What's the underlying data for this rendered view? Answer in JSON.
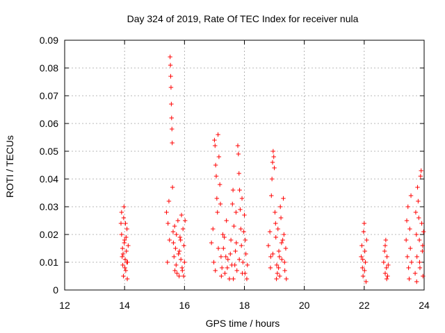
{
  "chart_data": {
    "type": "scatter",
    "title": "Day 324 of 2019, Rate Of TEC Index for receiver nula",
    "xlabel": "GPS time / hours",
    "ylabel": "ROTI / TECUs",
    "xlim": [
      12,
      24
    ],
    "ylim": [
      0,
      0.09
    ],
    "xticks": [
      12,
      14,
      16,
      18,
      20,
      22,
      24
    ],
    "xtick_labels": [
      "12",
      "14",
      "16",
      "18",
      "20",
      "22",
      "24"
    ],
    "yticks": [
      0,
      0.01,
      0.02,
      0.03,
      0.04,
      0.05,
      0.06,
      0.07,
      0.08,
      0.09
    ],
    "ytick_labels": [
      "0",
      "0.01",
      "0.02",
      "0.03",
      "0.04",
      "0.05",
      "0.06",
      "0.07",
      "0.08",
      "0.09"
    ],
    "grid": true,
    "marker": "+",
    "color": "#ff0000",
    "series": [
      {
        "name": "ROTI",
        "points": [
          [
            13.88,
            0.024
          ],
          [
            13.9,
            0.028
          ],
          [
            13.92,
            0.012
          ],
          [
            13.94,
            0.009
          ],
          [
            13.96,
            0.005
          ],
          [
            13.98,
            0.03
          ],
          [
            14.0,
            0.018
          ],
          [
            14.02,
            0.011
          ],
          [
            14.04,
            0.007
          ],
          [
            14.06,
            0.014
          ],
          [
            14.08,
            0.022
          ],
          [
            14.1,
            0.01
          ],
          [
            14.12,
            0.016
          ],
          [
            13.9,
            0.02
          ],
          [
            13.93,
            0.015
          ],
          [
            13.97,
            0.026
          ],
          [
            14.01,
            0.008
          ],
          [
            14.05,
            0.019
          ],
          [
            14.09,
            0.004
          ],
          [
            13.95,
            0.013
          ],
          [
            14.03,
            0.024
          ],
          [
            14.07,
            0.01
          ],
          [
            13.99,
            0.017
          ],
          [
            15.4,
            0.028
          ],
          [
            15.45,
            0.024
          ],
          [
            15.5,
            0.018
          ],
          [
            15.52,
            0.084
          ],
          [
            15.53,
            0.081
          ],
          [
            15.54,
            0.077
          ],
          [
            15.55,
            0.073
          ],
          [
            15.56,
            0.067
          ],
          [
            15.57,
            0.062
          ],
          [
            15.58,
            0.058
          ],
          [
            15.59,
            0.053
          ],
          [
            15.6,
            0.037
          ],
          [
            15.62,
            0.021
          ],
          [
            15.65,
            0.012
          ],
          [
            15.68,
            0.007
          ],
          [
            15.7,
            0.015
          ],
          [
            15.72,
            0.009
          ],
          [
            15.75,
            0.006
          ],
          [
            15.78,
            0.025
          ],
          [
            15.8,
            0.013
          ],
          [
            15.82,
            0.005
          ],
          [
            15.85,
            0.019
          ],
          [
            15.88,
            0.011
          ],
          [
            15.9,
            0.027
          ],
          [
            15.92,
            0.008
          ],
          [
            15.95,
            0.022
          ],
          [
            15.98,
            0.016
          ],
          [
            16.0,
            0.01
          ],
          [
            16.02,
            0.025
          ],
          [
            15.48,
            0.032
          ],
          [
            15.63,
            0.017
          ],
          [
            15.73,
            0.02
          ],
          [
            15.83,
            0.014
          ],
          [
            15.93,
            0.007
          ],
          [
            15.43,
            0.01
          ],
          [
            15.67,
            0.023
          ],
          [
            15.87,
            0.018
          ],
          [
            15.97,
            0.005
          ],
          [
            16.9,
            0.017
          ],
          [
            16.95,
            0.022
          ],
          [
            17.0,
            0.054
          ],
          [
            17.02,
            0.052
          ],
          [
            17.04,
            0.045
          ],
          [
            17.06,
            0.041
          ],
          [
            17.08,
            0.033
          ],
          [
            17.1,
            0.028
          ],
          [
            17.12,
            0.056
          ],
          [
            17.15,
            0.048
          ],
          [
            17.18,
            0.038
          ],
          [
            17.2,
            0.031
          ],
          [
            17.22,
            0.012
          ],
          [
            17.25,
            0.008
          ],
          [
            17.28,
            0.02
          ],
          [
            17.3,
            0.015
          ],
          [
            17.35,
            0.006
          ],
          [
            17.4,
            0.025
          ],
          [
            17.45,
            0.011
          ],
          [
            17.5,
            0.004
          ],
          [
            17.55,
            0.018
          ],
          [
            17.6,
            0.031
          ],
          [
            17.62,
            0.036
          ],
          [
            17.65,
            0.023
          ],
          [
            17.68,
            0.009
          ],
          [
            17.7,
            0.014
          ],
          [
            17.72,
            0.028
          ],
          [
            17.75,
            0.007
          ],
          [
            17.78,
            0.052
          ],
          [
            17.8,
            0.049
          ],
          [
            17.82,
            0.042
          ],
          [
            17.84,
            0.036
          ],
          [
            17.86,
            0.029
          ],
          [
            17.88,
            0.022
          ],
          [
            17.9,
            0.016
          ],
          [
            17.92,
            0.033
          ],
          [
            17.95,
            0.01
          ],
          [
            17.98,
            0.021
          ],
          [
            18.0,
            0.027
          ],
          [
            18.02,
            0.006
          ],
          [
            18.05,
            0.013
          ],
          [
            18.08,
            0.004
          ],
          [
            18.1,
            0.009
          ],
          [
            16.98,
            0.01
          ],
          [
            17.03,
            0.007
          ],
          [
            17.13,
            0.015
          ],
          [
            17.23,
            0.005
          ],
          [
            17.33,
            0.019
          ],
          [
            17.43,
            0.008
          ],
          [
            17.53,
            0.013
          ],
          [
            17.63,
            0.004
          ],
          [
            17.73,
            0.017
          ],
          [
            17.83,
            0.011
          ],
          [
            17.93,
            0.006
          ],
          [
            18.03,
            0.018
          ],
          [
            17.38,
            0.012
          ],
          [
            17.58,
            0.009
          ],
          [
            18.8,
            0.016
          ],
          [
            18.85,
            0.021
          ],
          [
            18.88,
            0.012
          ],
          [
            18.9,
            0.034
          ],
          [
            18.92,
            0.04
          ],
          [
            18.94,
            0.046
          ],
          [
            18.96,
            0.05
          ],
          [
            18.98,
            0.048
          ],
          [
            19.0,
            0.044
          ],
          [
            19.02,
            0.028
          ],
          [
            19.05,
            0.019
          ],
          [
            19.08,
            0.009
          ],
          [
            19.1,
            0.006
          ],
          [
            19.12,
            0.022
          ],
          [
            19.15,
            0.014
          ],
          [
            19.18,
            0.005
          ],
          [
            19.2,
            0.03
          ],
          [
            19.22,
            0.026
          ],
          [
            19.25,
            0.011
          ],
          [
            19.28,
            0.018
          ],
          [
            19.3,
            0.033
          ],
          [
            19.32,
            0.02
          ],
          [
            19.35,
            0.007
          ],
          [
            19.38,
            0.015
          ],
          [
            19.4,
            0.004
          ],
          [
            18.87,
            0.008
          ],
          [
            18.95,
            0.013
          ],
          [
            19.04,
            0.024
          ],
          [
            19.14,
            0.008
          ],
          [
            19.24,
            0.017
          ],
          [
            19.34,
            0.01
          ],
          [
            19.07,
            0.004
          ],
          [
            19.17,
            0.012
          ],
          [
            21.9,
            0.012
          ],
          [
            21.92,
            0.016
          ],
          [
            21.94,
            0.008
          ],
          [
            21.96,
            0.005
          ],
          [
            21.98,
            0.021
          ],
          [
            22.0,
            0.024
          ],
          [
            22.02,
            0.014
          ],
          [
            22.04,
            0.01
          ],
          [
            22.06,
            0.003
          ],
          [
            22.08,
            0.018
          ],
          [
            21.95,
            0.011
          ],
          [
            22.01,
            0.007
          ],
          [
            22.65,
            0.01
          ],
          [
            22.68,
            0.014
          ],
          [
            22.7,
            0.006
          ],
          [
            22.72,
            0.018
          ],
          [
            22.74,
            0.008
          ],
          [
            22.76,
            0.012
          ],
          [
            22.78,
            0.005
          ],
          [
            22.8,
            0.009
          ],
          [
            22.7,
            0.016
          ],
          [
            22.75,
            0.004
          ],
          [
            23.4,
            0.018
          ],
          [
            23.42,
            0.025
          ],
          [
            23.44,
            0.012
          ],
          [
            23.46,
            0.03
          ],
          [
            23.48,
            0.008
          ],
          [
            23.5,
            0.004
          ],
          [
            23.52,
            0.022
          ],
          [
            23.54,
            0.015
          ],
          [
            23.56,
            0.034
          ],
          [
            23.58,
            0.01
          ],
          [
            23.7,
            0.006
          ],
          [
            23.72,
            0.028
          ],
          [
            23.74,
            0.02
          ],
          [
            23.76,
            0.012
          ],
          [
            23.78,
            0.037
          ],
          [
            23.8,
            0.032
          ],
          [
            23.82,
            0.026
          ],
          [
            23.84,
            0.018
          ],
          [
            23.86,
            0.008
          ],
          [
            23.88,
            0.041
          ],
          [
            23.9,
            0.043
          ],
          [
            23.92,
            0.024
          ],
          [
            23.94,
            0.014
          ],
          [
            23.96,
            0.005
          ],
          [
            23.98,
            0.021
          ],
          [
            23.75,
            0.003
          ],
          [
            23.85,
            0.01
          ],
          [
            23.95,
            0.016
          ]
        ]
      }
    ]
  }
}
